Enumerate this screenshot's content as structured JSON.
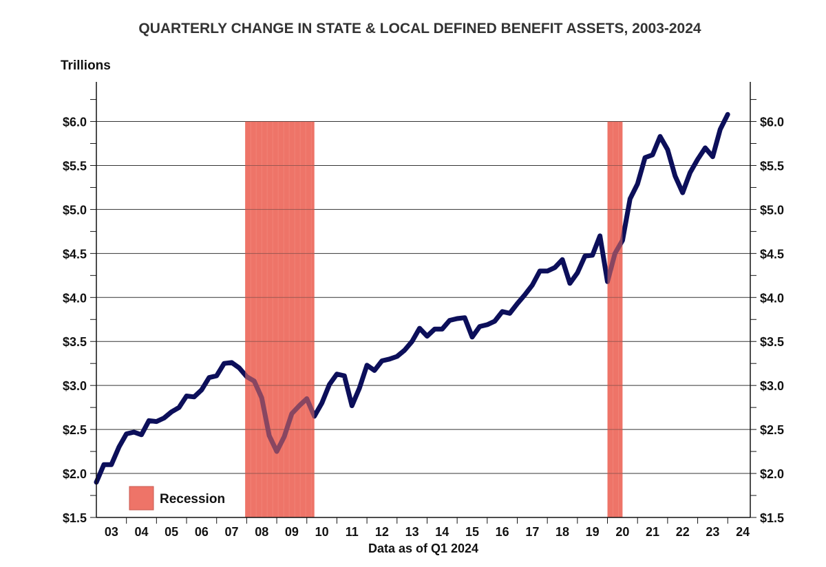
{
  "chart_data": {
    "type": "line",
    "title": "QUARTERLY CHANGE IN STATE & LOCAL DEFINED BENEFIT ASSETS, 2003-2024",
    "ylabel": "Trillions",
    "xlabel": "Data as of Q1 2024",
    "ylim": [
      1.5,
      6.45
    ],
    "xlim": [
      2003.0,
      2024.75
    ],
    "y_ticks": [
      1.5,
      2.0,
      2.5,
      3.0,
      3.5,
      4.0,
      4.5,
      5.0,
      5.5,
      6.0
    ],
    "y_tick_labels": [
      "$1.5",
      "$2.0",
      "$2.5",
      "$3.0",
      "$3.5",
      "$4.0",
      "$4.5",
      "$5.0",
      "$5.5",
      "$6.0"
    ],
    "x_tick_labels": [
      "03",
      "04",
      "05",
      "06",
      "07",
      "08",
      "09",
      "10",
      "11",
      "12",
      "13",
      "14",
      "15",
      "16",
      "17",
      "18",
      "19",
      "20",
      "21",
      "22",
      "23",
      "24"
    ],
    "grid": true,
    "legend": [
      {
        "label": "Recession",
        "color": "#ee7468",
        "placement": "bottom-left"
      }
    ],
    "colors": {
      "line": "#0c0f5a",
      "recession": "#ee7468",
      "grid": "#333333",
      "axis": "#111111"
    },
    "recessions": [
      {
        "start": 2007.95,
        "end": 2010.25
      },
      {
        "start": 2020.0,
        "end": 2020.5
      }
    ],
    "series": [
      {
        "name": "State & local DB assets",
        "x": [
          2003.0,
          2003.25,
          2003.5,
          2003.75,
          2004.0,
          2004.25,
          2004.5,
          2004.75,
          2005.0,
          2005.25,
          2005.5,
          2005.75,
          2006.0,
          2006.25,
          2006.5,
          2006.75,
          2007.0,
          2007.25,
          2007.5,
          2007.75,
          2008.0,
          2008.25,
          2008.5,
          2008.75,
          2009.0,
          2009.25,
          2009.5,
          2009.75,
          2010.0,
          2010.25,
          2010.5,
          2010.75,
          2011.0,
          2011.25,
          2011.5,
          2011.75,
          2012.0,
          2012.25,
          2012.5,
          2012.75,
          2013.0,
          2013.25,
          2013.5,
          2013.75,
          2014.0,
          2014.25,
          2014.5,
          2014.75,
          2015.0,
          2015.25,
          2015.5,
          2015.75,
          2016.0,
          2016.25,
          2016.5,
          2016.75,
          2017.0,
          2017.25,
          2017.5,
          2017.75,
          2018.0,
          2018.25,
          2018.5,
          2018.75,
          2019.0,
          2019.25,
          2019.5,
          2019.75,
          2020.0,
          2020.25,
          2020.5,
          2020.75,
          2021.0,
          2021.25,
          2021.5,
          2021.75,
          2022.0,
          2022.25,
          2022.5,
          2022.75,
          2023.0,
          2023.25,
          2023.5,
          2023.75,
          2024.0
        ],
        "values": [
          1.9,
          2.1,
          2.1,
          2.3,
          2.45,
          2.47,
          2.44,
          2.6,
          2.59,
          2.63,
          2.7,
          2.75,
          2.88,
          2.87,
          2.95,
          3.09,
          3.11,
          3.25,
          3.26,
          3.2,
          3.1,
          3.05,
          2.86,
          2.43,
          2.25,
          2.42,
          2.68,
          2.77,
          2.85,
          2.65,
          2.8,
          3.01,
          3.13,
          3.11,
          2.77,
          2.97,
          3.23,
          3.17,
          3.28,
          3.3,
          3.33,
          3.4,
          3.5,
          3.65,
          3.56,
          3.64,
          3.64,
          3.74,
          3.76,
          3.77,
          3.55,
          3.67,
          3.69,
          3.73,
          3.84,
          3.82,
          3.93,
          4.03,
          4.14,
          4.3,
          4.3,
          4.34,
          4.43,
          4.16,
          4.28,
          4.47,
          4.48,
          4.7,
          4.18,
          4.5,
          4.65,
          5.12,
          5.29,
          5.59,
          5.62,
          5.83,
          5.68,
          5.38,
          5.19,
          5.42,
          5.57,
          5.7,
          5.6,
          5.91,
          6.08
        ]
      }
    ]
  }
}
